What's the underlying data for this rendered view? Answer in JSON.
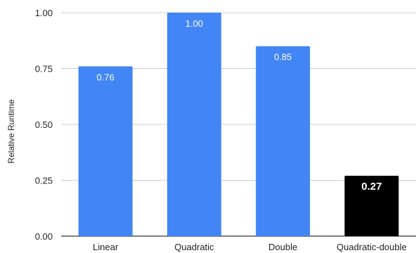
{
  "chart_data": {
    "type": "bar",
    "title": "",
    "xlabel": "",
    "ylabel": "Relative Runtime",
    "ylim": [
      0,
      1
    ],
    "yticks": [
      "0.00",
      "0.25",
      "0.50",
      "0.75",
      "1.00"
    ],
    "grid": true,
    "categories": [
      "Linear",
      "Quadratic",
      "Double",
      "Quadratic-double"
    ],
    "values": [
      0.76,
      1.0,
      0.85,
      0.27
    ],
    "value_labels": [
      "0.76",
      "1.00",
      "0.85",
      "0.27"
    ],
    "colors": [
      "#4285f4",
      "#4285f4",
      "#4285f4",
      "#000000"
    ],
    "label_colors": [
      "#ffffff",
      "#ffffff",
      "#ffffff",
      "#ffffff"
    ],
    "label_bold": [
      false,
      false,
      false,
      true
    ],
    "gridline_color": "#cccccc",
    "axis_color": "#333333"
  }
}
